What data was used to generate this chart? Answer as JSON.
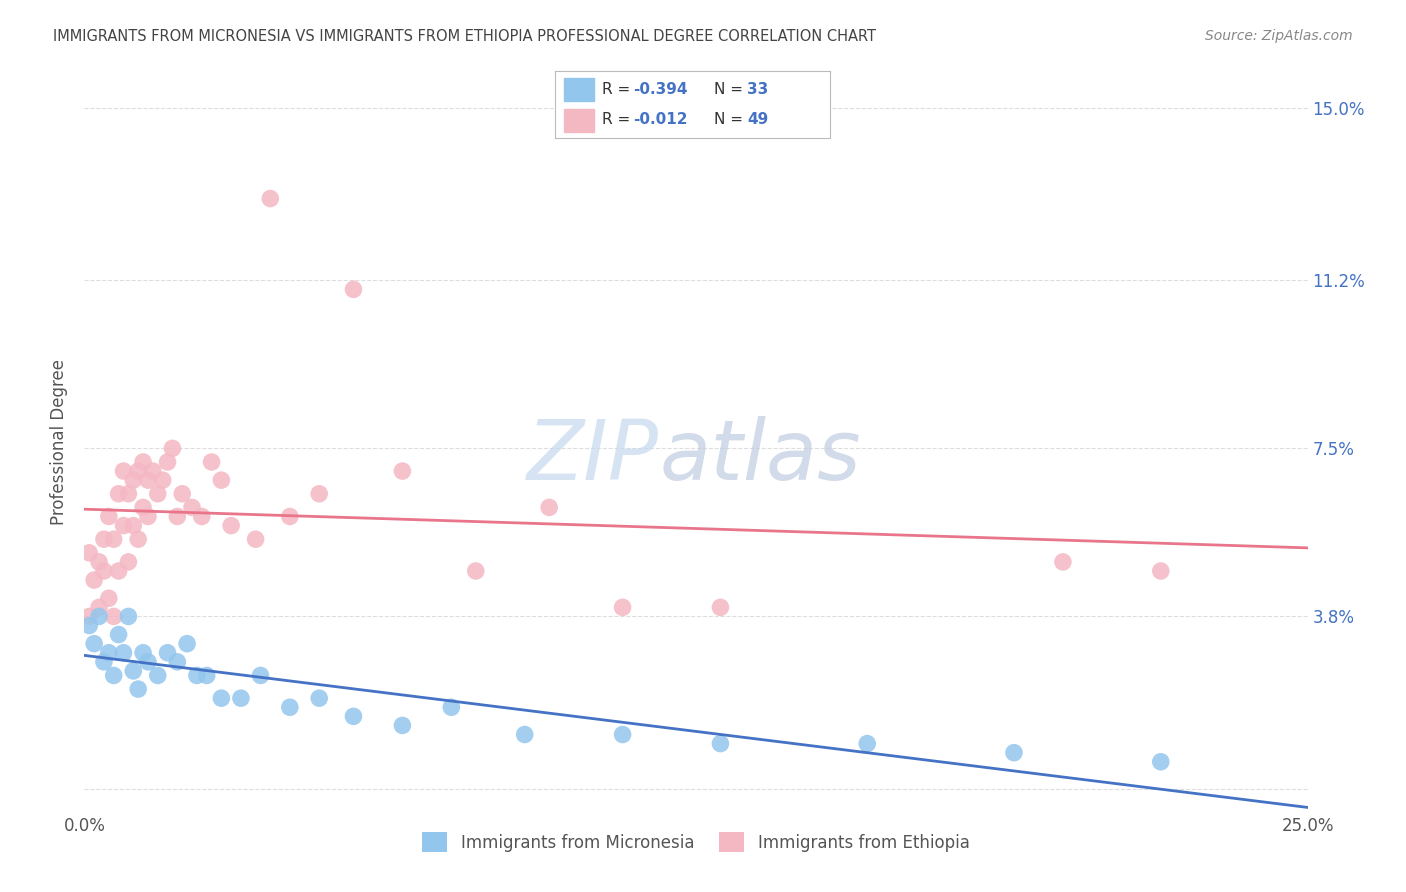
{
  "title": "IMMIGRANTS FROM MICRONESIA VS IMMIGRANTS FROM ETHIOPIA PROFESSIONAL DEGREE CORRELATION CHART",
  "source": "Source: ZipAtlas.com",
  "ylabel": "Professional Degree",
  "xlim": [
    0.0,
    0.25
  ],
  "ylim": [
    -0.005,
    0.158
  ],
  "micronesia_color": "#93C6ED",
  "ethiopia_color": "#F4B8C3",
  "micronesia_line_color": "#4472C4",
  "ethiopia_line_color": "#E8758A",
  "micronesia_x": [
    0.001,
    0.002,
    0.003,
    0.004,
    0.005,
    0.006,
    0.007,
    0.008,
    0.009,
    0.01,
    0.011,
    0.012,
    0.013,
    0.015,
    0.017,
    0.019,
    0.021,
    0.023,
    0.025,
    0.028,
    0.032,
    0.036,
    0.042,
    0.048,
    0.055,
    0.065,
    0.075,
    0.09,
    0.11,
    0.13,
    0.16,
    0.19,
    0.22
  ],
  "micronesia_y": [
    0.036,
    0.032,
    0.038,
    0.028,
    0.03,
    0.025,
    0.034,
    0.03,
    0.038,
    0.026,
    0.022,
    0.03,
    0.028,
    0.025,
    0.03,
    0.028,
    0.032,
    0.025,
    0.025,
    0.02,
    0.02,
    0.025,
    0.018,
    0.02,
    0.016,
    0.014,
    0.018,
    0.012,
    0.012,
    0.01,
    0.01,
    0.008,
    0.006
  ],
  "ethiopia_x": [
    0.001,
    0.001,
    0.002,
    0.003,
    0.003,
    0.004,
    0.004,
    0.005,
    0.005,
    0.006,
    0.006,
    0.007,
    0.007,
    0.008,
    0.008,
    0.009,
    0.009,
    0.01,
    0.01,
    0.011,
    0.011,
    0.012,
    0.012,
    0.013,
    0.013,
    0.014,
    0.015,
    0.016,
    0.017,
    0.018,
    0.019,
    0.02,
    0.022,
    0.024,
    0.026,
    0.028,
    0.03,
    0.035,
    0.038,
    0.042,
    0.048,
    0.055,
    0.065,
    0.08,
    0.095,
    0.11,
    0.13,
    0.2,
    0.22
  ],
  "ethiopia_y": [
    0.038,
    0.052,
    0.046,
    0.04,
    0.05,
    0.055,
    0.048,
    0.06,
    0.042,
    0.038,
    0.055,
    0.048,
    0.065,
    0.07,
    0.058,
    0.05,
    0.065,
    0.058,
    0.068,
    0.055,
    0.07,
    0.072,
    0.062,
    0.06,
    0.068,
    0.07,
    0.065,
    0.068,
    0.072,
    0.075,
    0.06,
    0.065,
    0.062,
    0.06,
    0.072,
    0.068,
    0.058,
    0.055,
    0.13,
    0.06,
    0.065,
    0.11,
    0.07,
    0.048,
    0.062,
    0.04,
    0.04,
    0.05,
    0.048
  ],
  "ytick_positions": [
    0.0,
    0.038,
    0.075,
    0.112,
    0.15
  ],
  "ytick_labels": [
    "",
    "3.8%",
    "7.5%",
    "11.2%",
    "15.0%"
  ],
  "xtick_positions": [
    0.0,
    0.05,
    0.1,
    0.15,
    0.2,
    0.25
  ],
  "xtick_labels": [
    "0.0%",
    "",
    "",
    "",
    "",
    "25.0%"
  ],
  "watermark_zip": "ZIP",
  "watermark_atlas": "atlas",
  "background_color": "#FFFFFF",
  "grid_color": "#DDDDDD",
  "title_color": "#444444",
  "source_color": "#888888",
  "tick_color_blue": "#4472C4",
  "tick_color_dark": "#555555",
  "legend_r1": "R = ",
  "legend_v1": "-0.394",
  "legend_n1_label": "N = ",
  "legend_n1_val": "33",
  "legend_r2": "R = ",
  "legend_v2": "-0.012",
  "legend_n2_label": "N = ",
  "legend_n2_val": "49",
  "legend_label1": "Immigrants from Micronesia",
  "legend_label2": "Immigrants from Ethiopia"
}
